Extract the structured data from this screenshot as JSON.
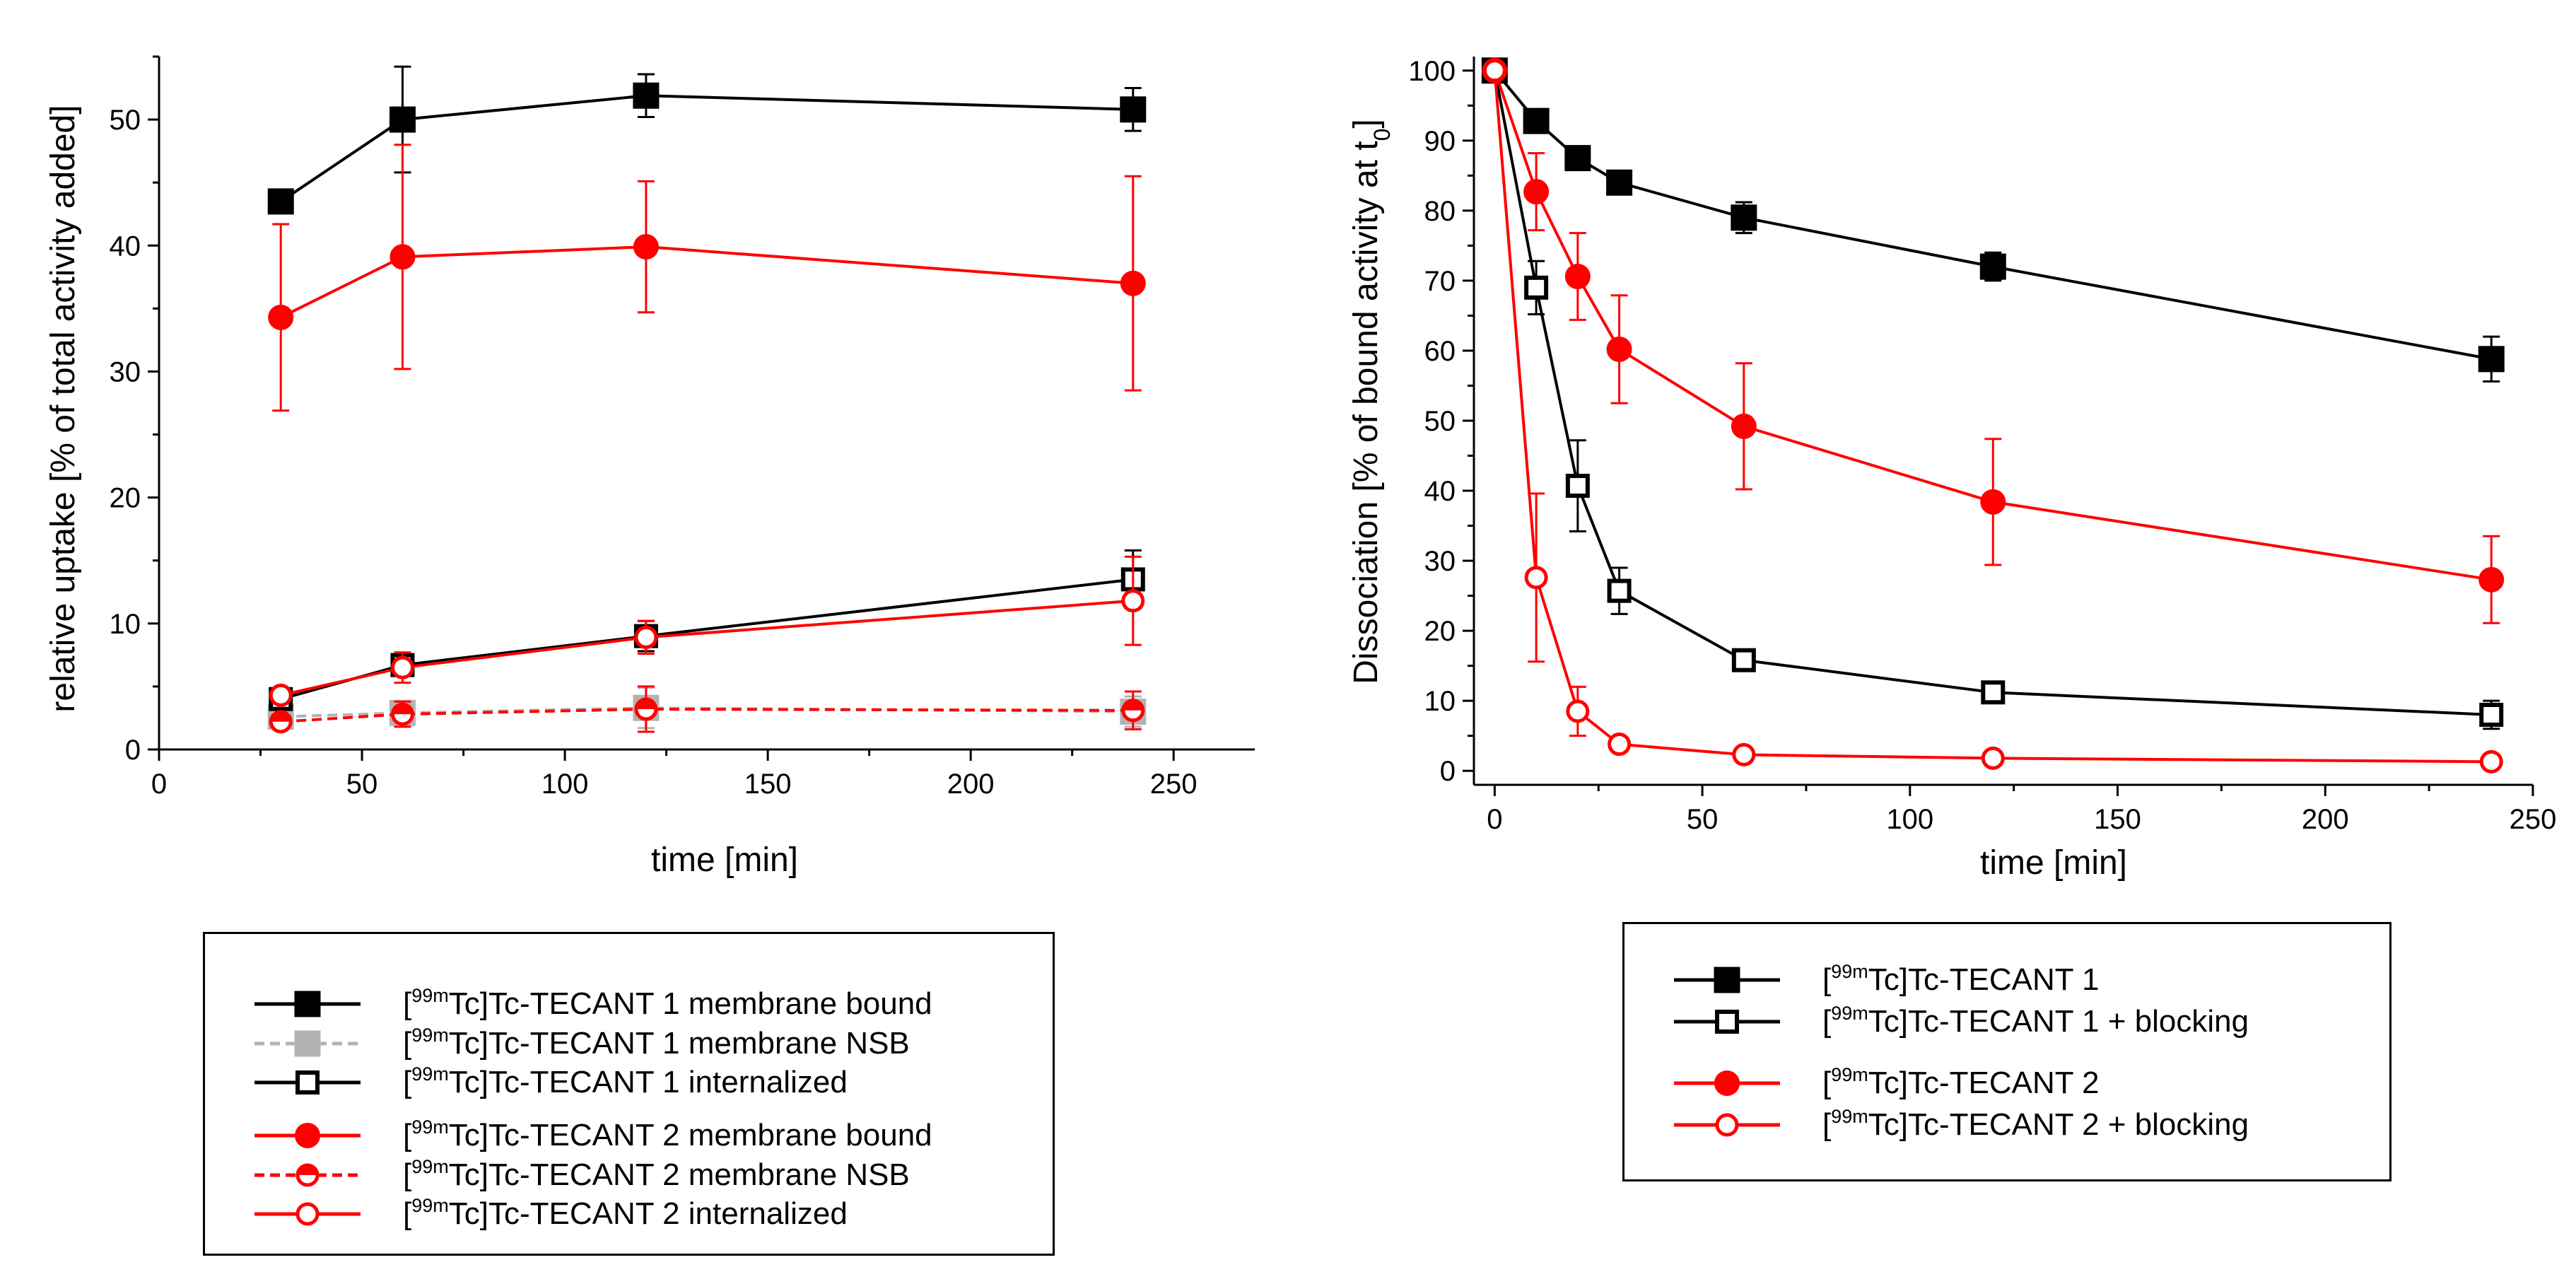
{
  "chart_data": [
    {
      "type": "line",
      "xlabel": "time [min]",
      "ylabel": "relative uptake [% of total activity added]",
      "xlim": [
        0,
        270
      ],
      "ylim": [
        0,
        55
      ],
      "xticks": [
        "0",
        "50",
        "100",
        "150",
        "200",
        "250"
      ],
      "yticks": [
        "0",
        "10",
        "20",
        "30",
        "40",
        "50"
      ],
      "x": [
        30,
        60,
        120,
        240
      ],
      "series": [
        {
          "name": "TECANT 1 membrane bound",
          "color": "#000000",
          "marker": "square-filled",
          "dashed": false,
          "values": [
            43.5,
            50,
            51.9,
            50.8
          ],
          "err": [
            0,
            4.2,
            1.7,
            1.7
          ]
        },
        {
          "name": "TECANT 1 membrane NSB",
          "color": "#b3b3b3",
          "marker": "square-filled",
          "dashed": true,
          "values": [
            2.6,
            2.9,
            3.3,
            3.0
          ],
          "err": [
            0.4,
            0.8,
            1.6,
            1.2
          ]
        },
        {
          "name": "TECANT 1 internalized",
          "color": "#000000",
          "marker": "square-open",
          "dashed": false,
          "values": [
            4.0,
            6.7,
            9.0,
            13.5
          ],
          "err": [
            0.4,
            0.8,
            1.2,
            2.3
          ]
        },
        {
          "name": "TECANT 2 membrane bound",
          "color": "#ff0000",
          "marker": "circle-filled",
          "dashed": false,
          "values": [
            34.3,
            39.1,
            39.9,
            37.0
          ],
          "err": [
            7.4,
            8.9,
            5.2,
            8.5
          ]
        },
        {
          "name": "TECANT 2 membrane NSB",
          "color": "#ff0000",
          "marker": "circle-half",
          "dashed": true,
          "values": [
            2.2,
            2.8,
            3.2,
            3.1
          ],
          "err": [
            0.5,
            1.0,
            1.8,
            1.5
          ]
        },
        {
          "name": "TECANT 2 internalized",
          "color": "#ff0000",
          "marker": "circle-open",
          "dashed": false,
          "values": [
            4.3,
            6.5,
            8.9,
            11.8
          ],
          "err": [
            0.5,
            1.2,
            1.3,
            3.5
          ]
        }
      ],
      "legend": {
        "placement": "below",
        "prefix_bracket": "[",
        "prefix_sup": "99m",
        "entries": [
          "Tc]Tc-TECANT 1 membrane  bound",
          "Tc]Tc-TECANT 1 membrane  NSB",
          "Tc]Tc-TECANT 1 internalized",
          "Tc]Tc-TECANT 2 membrane  bound",
          "Tc]Tc-TECANT 2 membrane  NSB",
          "Tc]Tc-TECANT 2 internalized"
        ]
      }
    },
    {
      "type": "line",
      "xlabel": "time [min]",
      "ylabel": "Dissociation [% of bound activity at t",
      "ylabel_sub": "0",
      "ylabel_end": "]",
      "xlim": [
        -5,
        250
      ],
      "ylim": [
        -2,
        102
      ],
      "xticks": [
        "0",
        "50",
        "100",
        "150",
        "200",
        "250"
      ],
      "yticks": [
        "0",
        "10",
        "20",
        "30",
        "40",
        "50",
        "60",
        "70",
        "80",
        "90",
        "100"
      ],
      "series": [
        {
          "name": "TECANT 1",
          "color": "#000000",
          "marker": "square-filled",
          "dashed": false,
          "x": [
            0,
            10,
            20,
            30,
            60,
            120,
            240
          ],
          "values": [
            100,
            92.8,
            87.5,
            84,
            79,
            72,
            58.8
          ],
          "err": [
            0,
            0,
            0,
            0,
            2.2,
            2,
            3.2
          ]
        },
        {
          "name": "TECANT 1 + blocking",
          "color": "#000000",
          "marker": "square-open",
          "dashed": false,
          "x": [
            0,
            10,
            20,
            30,
            60,
            120,
            240
          ],
          "values": [
            100,
            69,
            40.7,
            25.7,
            15.8,
            11.2,
            8.0
          ],
          "err": [
            0,
            3.8,
            6.5,
            3.3,
            1.2,
            1.0,
            2.0
          ]
        },
        {
          "name": "TECANT 2",
          "color": "#ff0000",
          "marker": "circle-filled",
          "dashed": false,
          "x": [
            0,
            10,
            20,
            30,
            60,
            120,
            240
          ],
          "values": [
            100,
            82.7,
            70.6,
            60.2,
            49.2,
            38.4,
            27.3
          ],
          "err": [
            0,
            5.5,
            6.2,
            7.7,
            9.0,
            9.0,
            6.2
          ]
        },
        {
          "name": "TECANT 2 + blocking",
          "color": "#ff0000",
          "marker": "circle-open",
          "dashed": false,
          "x": [
            0,
            10,
            20,
            30,
            60,
            120,
            240
          ],
          "values": [
            100,
            27.6,
            8.5,
            3.8,
            2.3,
            1.8,
            1.3
          ],
          "err": [
            0,
            12.0,
            3.5,
            0.8,
            0.8,
            0.5,
            0.4
          ]
        }
      ],
      "legend": {
        "placement": "below",
        "prefix_bracket": "[",
        "prefix_sup": "99m",
        "entries": [
          "Tc]Tc-TECANT 1",
          "Tc]Tc-TECANT 1 + blocking",
          "Tc]Tc-TECANT 2",
          "Tc]Tc-TECANT 2 + blocking"
        ]
      }
    }
  ]
}
